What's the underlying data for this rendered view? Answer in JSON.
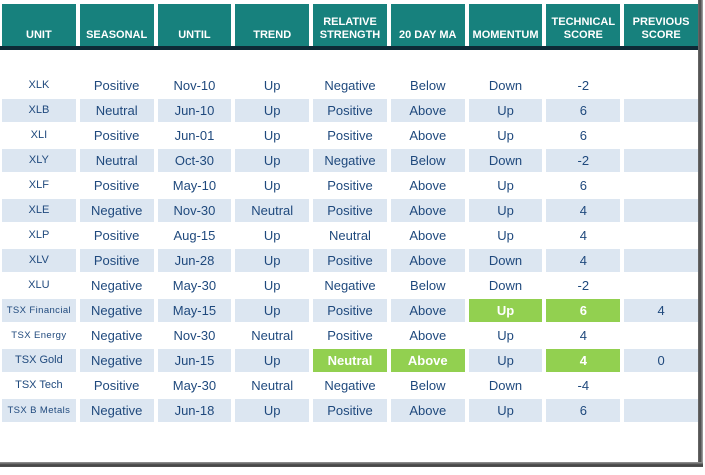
{
  "colors": {
    "header_bg": "#17817d",
    "header_text": "#ffffff",
    "header_underline": "#0d2a36",
    "row_stripe": "#dce6f1",
    "body_text": "#1f497d",
    "highlight_green": "#92d050",
    "highlight_text": "#ffffff"
  },
  "table": {
    "columns": [
      "UNIT",
      "SEASONAL",
      "UNTIL",
      "TREND",
      "RELATIVE STRENGTH",
      "20 DAY MA",
      "MOMENTUM",
      "TECHNICAL SCORE",
      "PREVIOUS SCORE"
    ],
    "rows": [
      {
        "cells": [
          "XLK",
          "Positive",
          "Nov-10",
          "Up",
          "Negative",
          "Below",
          "Down",
          "-2",
          ""
        ],
        "green": []
      },
      {
        "cells": [
          "XLB",
          "Neutral",
          "Jun-10",
          "Up",
          "Positive",
          "Above",
          "Up",
          "6",
          ""
        ],
        "green": []
      },
      {
        "cells": [
          "XLI",
          "Positive",
          "Jun-01",
          "Up",
          "Positive",
          "Above",
          "Up",
          "6",
          ""
        ],
        "green": []
      },
      {
        "cells": [
          "XLY",
          "Neutral",
          "Oct-30",
          "Up",
          "Negative",
          "Below",
          "Down",
          "-2",
          ""
        ],
        "green": []
      },
      {
        "cells": [
          "XLF",
          "Positive",
          "May-10",
          "Up",
          "Positive",
          "Above",
          "Up",
          "6",
          ""
        ],
        "green": []
      },
      {
        "cells": [
          "XLE",
          "Negative",
          "Nov-30",
          "Neutral",
          "Positive",
          "Above",
          "Up",
          "4",
          ""
        ],
        "green": []
      },
      {
        "cells": [
          "XLP",
          "Positive",
          "Aug-15",
          "Up",
          "Neutral",
          "Above",
          "Up",
          "4",
          ""
        ],
        "green": []
      },
      {
        "cells": [
          "XLV",
          "Positive",
          "Jun-28",
          "Up",
          "Positive",
          "Above",
          "Down",
          "4",
          ""
        ],
        "green": []
      },
      {
        "cells": [
          "XLU",
          "Negative",
          "May-30",
          "Up",
          "Negative",
          "Below",
          "Down",
          "-2",
          ""
        ],
        "green": []
      },
      {
        "cells": [
          "TSX Financial",
          "Negative",
          "May-15",
          "Up",
          "Positive",
          "Above",
          "Up",
          "6",
          "4"
        ],
        "green": [
          6,
          7
        ]
      },
      {
        "cells": [
          "TSX Energy",
          "Negative",
          "Nov-30",
          "Neutral",
          "Positive",
          "Above",
          "Up",
          "4",
          ""
        ],
        "green": []
      },
      {
        "cells": [
          "TSX Gold",
          "Negative",
          "Jun-15",
          "Up",
          "Neutral",
          "Above",
          "Up",
          "4",
          "0"
        ],
        "green": [
          4,
          5,
          7
        ]
      },
      {
        "cells": [
          "TSX Tech",
          "Positive",
          "May-30",
          "Neutral",
          "Negative",
          "Below",
          "Down",
          "-4",
          ""
        ],
        "green": []
      },
      {
        "cells": [
          "TSX B Metals",
          "Negative",
          "Jun-18",
          "Up",
          "Positive",
          "Above",
          "Up",
          "6",
          ""
        ],
        "green": []
      }
    ]
  }
}
